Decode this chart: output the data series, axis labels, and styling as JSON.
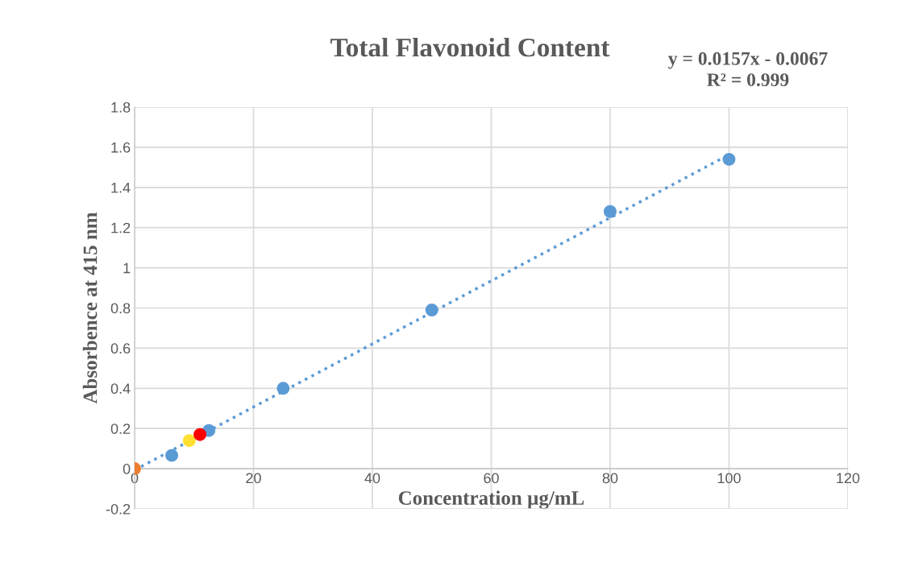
{
  "chart_data": {
    "type": "scatter",
    "title": "Total Flavonoid Content",
    "xlabel": "Concentration µg/mL",
    "ylabel": "Absorbence at 415 nm",
    "annotations": [
      "y = 0.0157x - 0.0067\nR² = 0.999"
    ],
    "series": [
      {
        "type": "line",
        "color": "#5b9bd5",
        "x": [
          0,
          100
        ],
        "values": [
          -0.007,
          1.563
        ],
        "line_style": "dotted",
        "marker": "none"
      },
      {
        "color": "#5b9bd5",
        "x": [
          6.25,
          12.5,
          25,
          50,
          80,
          100
        ],
        "values": [
          0.066,
          0.19,
          0.4,
          0.79,
          1.28,
          1.54
        ]
      },
      {
        "color": "#ffe030",
        "x": [
          9.2
        ],
        "values": [
          0.14
        ]
      },
      {
        "color": "#ff0000",
        "x": [
          11.0
        ],
        "values": [
          0.17
        ]
      },
      {
        "color": "#ed7d31",
        "x": [
          0
        ],
        "values": [
          0
        ]
      }
    ],
    "xlim": [
      0,
      120
    ],
    "xticks": [
      0,
      20,
      40,
      60,
      80,
      100,
      120
    ],
    "ylim": [
      -0.2,
      1.8
    ],
    "yticks": [
      -0.2,
      0,
      0.2,
      0.4,
      0.6,
      0.8,
      1,
      1.2,
      1.4,
      1.6,
      1.8
    ],
    "grid": true,
    "marker": "circle",
    "legend": false
  }
}
